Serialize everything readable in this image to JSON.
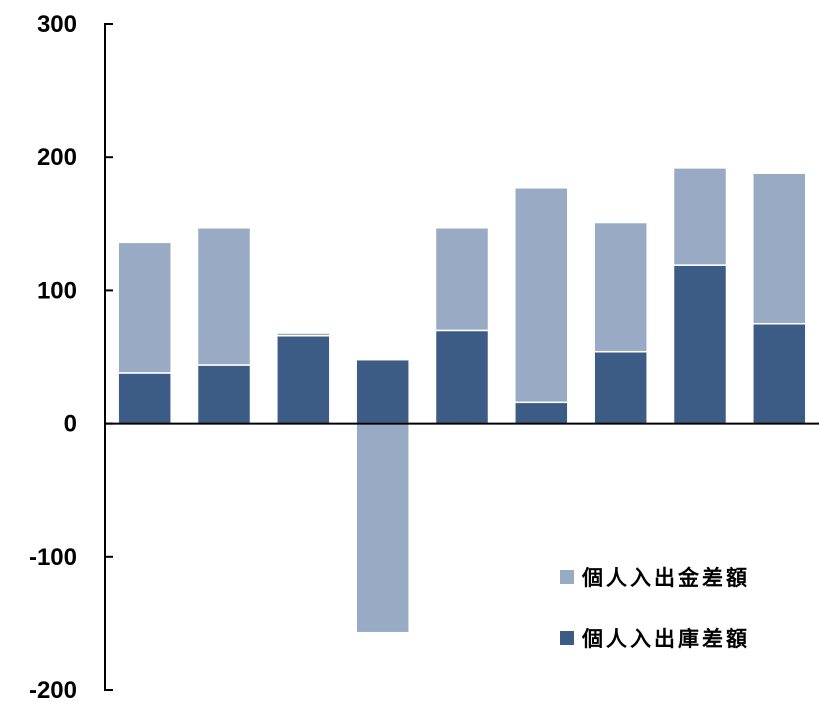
{
  "chart_data": {
    "type": "bar",
    "stacked": true,
    "categories": [
      "",
      "",
      "",
      "",
      "",
      "",
      "",
      "",
      ""
    ],
    "series": [
      {
        "name": "個人入出庫差額",
        "color": "#3d5c85",
        "values": [
          38,
          44,
          66,
          48,
          70,
          16,
          54,
          119,
          75
        ]
      },
      {
        "name": "個人入出金差額",
        "color": "#99aac4",
        "values": [
          98,
          103,
          2,
          -157,
          77,
          161,
          97,
          73,
          113
        ]
      }
    ],
    "ylim": [
      -200,
      300
    ],
    "yticks": [
      -200,
      -100,
      0,
      100,
      200,
      300
    ],
    "ytick_labels": [
      "-200",
      "-100",
      "0",
      "100",
      "200",
      "300"
    ],
    "grid": false,
    "legend_position": "bottom-right",
    "legend_order": [
      1,
      0
    ]
  }
}
